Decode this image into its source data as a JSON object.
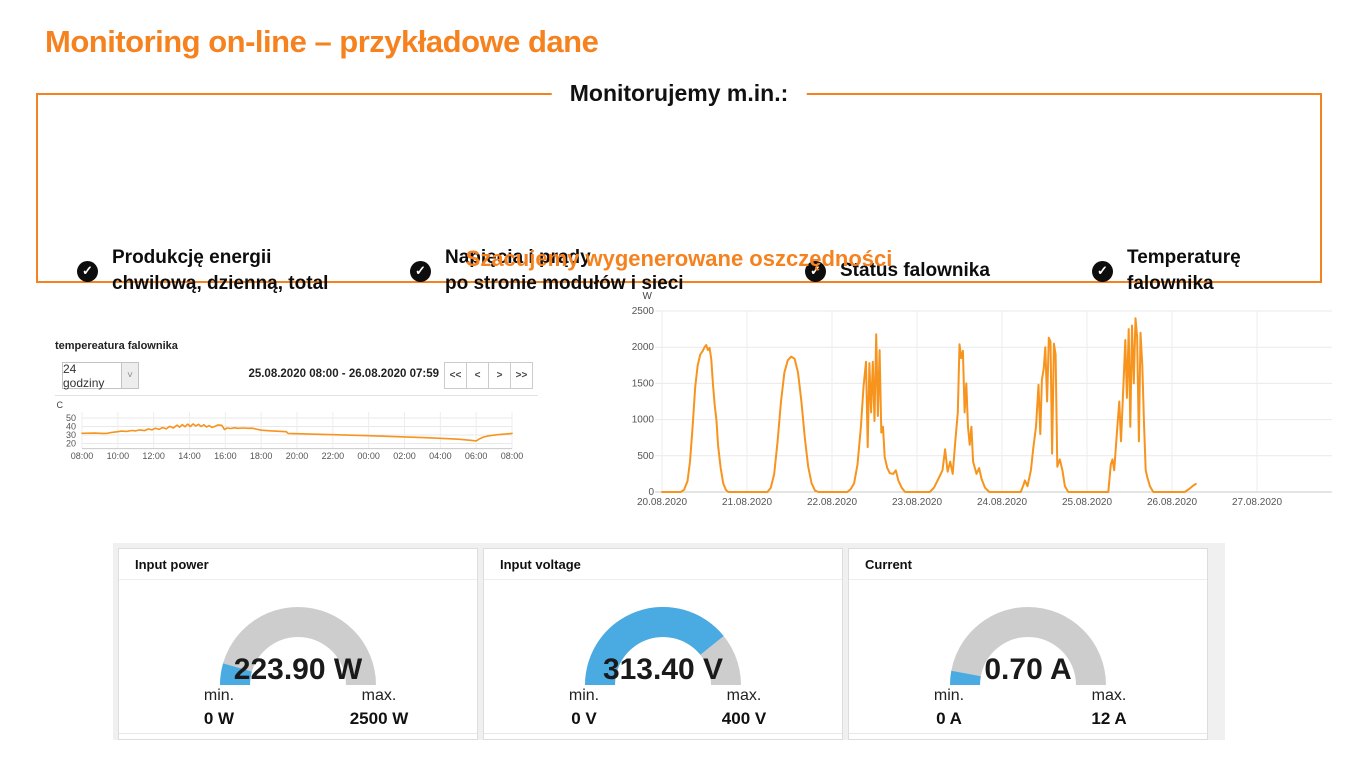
{
  "slide": {
    "title": "Monitoring on-line – przykładowe dane",
    "features_heading": "Monitorujemy m.in.:",
    "features": [
      {
        "lines": [
          "Produkcję energii",
          "chwilową, dzienną, total"
        ]
      },
      {
        "lines": [
          "Napięcia i prądy",
          "po stronie modułów i sieci"
        ]
      },
      {
        "lines": [
          "Status falownika"
        ]
      },
      {
        "lines": [
          "Temperaturę",
          "falownika"
        ]
      }
    ],
    "subtitle": "Szacujemy wygenerowane oszczędności",
    "accent_color": "#f5821f"
  },
  "temp_panel": {
    "title": "tempereatura falownika",
    "range_value": "24 godziny",
    "date_range": "25.08.2020 08:00 - 26.08.2020 07:59",
    "nav": [
      "<<",
      "<",
      ">",
      ">>"
    ]
  },
  "chart_data": [
    {
      "id": "temperature",
      "type": "line",
      "title": "tempereatura falownika",
      "ylabel": "C",
      "ylim": [
        14,
        57
      ],
      "yticks": [
        20,
        30,
        40,
        50
      ],
      "xlim": [
        0,
        24
      ],
      "xtick_values": [
        0,
        2,
        4,
        6,
        8,
        10,
        12,
        14,
        16,
        18,
        20,
        22,
        24
      ],
      "xtick_labels": [
        "08:00",
        "10:00",
        "12:00",
        "14:00",
        "16:00",
        "18:00",
        "20:00",
        "22:00",
        "00:00",
        "02:00",
        "04:00",
        "06:00",
        "08:00"
      ],
      "grid": true,
      "line_color": "#f7941e",
      "points": [
        [
          0,
          32
        ],
        [
          0.7,
          32.2
        ],
        [
          1.2,
          31.9
        ],
        [
          1.4,
          32.0
        ],
        [
          1.6,
          32.8
        ],
        [
          2.0,
          33.8
        ],
        [
          2.2,
          34.6
        ],
        [
          2.5,
          34.2
        ],
        [
          2.8,
          35.3
        ],
        [
          3.0,
          34.8
        ],
        [
          3.2,
          36.0
        ],
        [
          3.5,
          35.2
        ],
        [
          3.7,
          37.2
        ],
        [
          3.9,
          36.0
        ],
        [
          4.1,
          38.0
        ],
        [
          4.3,
          36.6
        ],
        [
          4.5,
          38.8
        ],
        [
          4.7,
          37.2
        ],
        [
          4.9,
          40.2
        ],
        [
          5.1,
          38.2
        ],
        [
          5.3,
          41.6
        ],
        [
          5.45,
          39.2
        ],
        [
          5.6,
          42.2
        ],
        [
          5.75,
          39.6
        ],
        [
          5.9,
          42.8
        ],
        [
          6.05,
          40.0
        ],
        [
          6.2,
          43.0
        ],
        [
          6.35,
          40.6
        ],
        [
          6.5,
          42.6
        ],
        [
          6.65,
          40.0
        ],
        [
          6.8,
          42.0
        ],
        [
          6.95,
          39.4
        ],
        [
          7.1,
          41.0
        ],
        [
          7.25,
          38.8
        ],
        [
          7.4,
          40.0
        ],
        [
          7.6,
          41.8
        ],
        [
          7.8,
          41.4
        ],
        [
          7.95,
          36.4
        ],
        [
          8.1,
          38.2
        ],
        [
          8.3,
          37.6
        ],
        [
          8.5,
          38.4
        ],
        [
          8.7,
          37.8
        ],
        [
          9.0,
          38.2
        ],
        [
          9.3,
          37.9
        ],
        [
          9.5,
          38.0
        ],
        [
          9.7,
          37.0
        ],
        [
          10.0,
          35.6
        ],
        [
          10.5,
          34.9
        ],
        [
          11.0,
          34.3
        ],
        [
          11.4,
          33.9
        ],
        [
          11.5,
          31.9
        ],
        [
          12.0,
          31.5
        ],
        [
          13.0,
          30.9
        ],
        [
          14.0,
          30.3
        ],
        [
          15.0,
          29.7
        ],
        [
          16.0,
          29.1
        ],
        [
          17.0,
          28.4
        ],
        [
          18.0,
          27.7
        ],
        [
          19.0,
          26.9
        ],
        [
          20.0,
          26.1
        ],
        [
          21.0,
          25.1
        ],
        [
          21.7,
          23.8
        ],
        [
          22.0,
          23.1
        ],
        [
          22.15,
          25.0
        ],
        [
          22.4,
          27.5
        ],
        [
          22.7,
          29.0
        ],
        [
          23.2,
          30.3
        ],
        [
          23.6,
          31.0
        ],
        [
          24.0,
          31.8
        ]
      ]
    },
    {
      "id": "power",
      "type": "line",
      "title": "",
      "ylabel": "W",
      "ylim": [
        0,
        2500
      ],
      "yticks": [
        0,
        500,
        1000,
        1500,
        2000,
        2500
      ],
      "xlim": [
        -0.08,
        7.88
      ],
      "xtick_values": [
        0,
        1,
        2,
        3,
        4,
        5,
        6,
        7
      ],
      "xtick_labels": [
        "20.08.2020",
        "21.08.2020",
        "22.08.2020",
        "23.08.2020",
        "24.08.2020",
        "25.08.2020",
        "26.08.2020",
        "27.08.2020"
      ],
      "grid": true,
      "line_color": "#f7941e",
      "points": [
        [
          0,
          0
        ],
        [
          0.22,
          0
        ],
        [
          0.26,
          30
        ],
        [
          0.3,
          150
        ],
        [
          0.33,
          420
        ],
        [
          0.36,
          900
        ],
        [
          0.39,
          1450
        ],
        [
          0.42,
          1750
        ],
        [
          0.45,
          1900
        ],
        [
          0.48,
          1950
        ],
        [
          0.5,
          2000
        ],
        [
          0.52,
          2030
        ],
        [
          0.54,
          1960
        ],
        [
          0.56,
          1990
        ],
        [
          0.58,
          1830
        ],
        [
          0.6,
          1480
        ],
        [
          0.62,
          1200
        ],
        [
          0.64,
          1000
        ],
        [
          0.66,
          640
        ],
        [
          0.69,
          330
        ],
        [
          0.72,
          120
        ],
        [
          0.75,
          30
        ],
        [
          0.78,
          0
        ],
        [
          1.24,
          0
        ],
        [
          1.28,
          60
        ],
        [
          1.32,
          250
        ],
        [
          1.36,
          700
        ],
        [
          1.4,
          1250
        ],
        [
          1.44,
          1650
        ],
        [
          1.48,
          1820
        ],
        [
          1.52,
          1870
        ],
        [
          1.56,
          1840
        ],
        [
          1.6,
          1650
        ],
        [
          1.64,
          1250
        ],
        [
          1.68,
          750
        ],
        [
          1.72,
          350
        ],
        [
          1.76,
          120
        ],
        [
          1.8,
          20
        ],
        [
          1.84,
          0
        ],
        [
          2.18,
          0
        ],
        [
          2.22,
          40
        ],
        [
          2.26,
          120
        ],
        [
          2.3,
          380
        ],
        [
          2.34,
          900
        ],
        [
          2.37,
          1450
        ],
        [
          2.4,
          1800
        ],
        [
          2.42,
          620
        ],
        [
          2.44,
          1780
        ],
        [
          2.46,
          1100
        ],
        [
          2.48,
          1800
        ],
        [
          2.5,
          980
        ],
        [
          2.52,
          2180
        ],
        [
          2.54,
          1050
        ],
        [
          2.56,
          1960
        ],
        [
          2.58,
          820
        ],
        [
          2.6,
          900
        ],
        [
          2.62,
          480
        ],
        [
          2.65,
          330
        ],
        [
          2.68,
          260
        ],
        [
          2.72,
          250
        ],
        [
          2.75,
          300
        ],
        [
          2.78,
          160
        ],
        [
          2.82,
          60
        ],
        [
          2.86,
          0
        ],
        [
          3.15,
          0
        ],
        [
          3.2,
          60
        ],
        [
          3.25,
          180
        ],
        [
          3.3,
          300
        ],
        [
          3.33,
          590
        ],
        [
          3.36,
          280
        ],
        [
          3.39,
          420
        ],
        [
          3.42,
          250
        ],
        [
          3.45,
          700
        ],
        [
          3.48,
          1100
        ],
        [
          3.5,
          2040
        ],
        [
          3.52,
          1850
        ],
        [
          3.54,
          1950
        ],
        [
          3.56,
          1100
        ],
        [
          3.58,
          1500
        ],
        [
          3.6,
          900
        ],
        [
          3.62,
          650
        ],
        [
          3.64,
          900
        ],
        [
          3.66,
          420
        ],
        [
          3.7,
          250
        ],
        [
          3.73,
          330
        ],
        [
          3.76,
          180
        ],
        [
          3.8,
          60
        ],
        [
          3.85,
          0
        ],
        [
          4.22,
          0
        ],
        [
          4.25,
          90
        ],
        [
          4.27,
          160
        ],
        [
          4.3,
          80
        ],
        [
          4.34,
          300
        ],
        [
          4.37,
          620
        ],
        [
          4.4,
          900
        ],
        [
          4.43,
          1480
        ],
        [
          4.45,
          800
        ],
        [
          4.47,
          1550
        ],
        [
          4.49,
          1700
        ],
        [
          4.51,
          2000
        ],
        [
          4.53,
          1250
        ],
        [
          4.55,
          2130
        ],
        [
          4.57,
          2080
        ],
        [
          4.59,
          530
        ],
        [
          4.61,
          2050
        ],
        [
          4.63,
          1900
        ],
        [
          4.65,
          350
        ],
        [
          4.68,
          450
        ],
        [
          4.71,
          300
        ],
        [
          4.74,
          80
        ],
        [
          4.78,
          0
        ],
        [
          5.25,
          0
        ],
        [
          5.28,
          380
        ],
        [
          5.3,
          450
        ],
        [
          5.32,
          300
        ],
        [
          5.36,
          950
        ],
        [
          5.38,
          1250
        ],
        [
          5.4,
          700
        ],
        [
          5.43,
          1500
        ],
        [
          5.45,
          2100
        ],
        [
          5.47,
          1300
        ],
        [
          5.49,
          2250
        ],
        [
          5.51,
          900
        ],
        [
          5.53,
          2300
        ],
        [
          5.55,
          1500
        ],
        [
          5.57,
          2400
        ],
        [
          5.59,
          2150
        ],
        [
          5.61,
          700
        ],
        [
          5.63,
          2200
        ],
        [
          5.65,
          1750
        ],
        [
          5.67,
          950
        ],
        [
          5.69,
          300
        ],
        [
          5.71,
          200
        ],
        [
          5.74,
          80
        ],
        [
          5.78,
          0
        ],
        [
          6.15,
          0
        ],
        [
          6.2,
          40
        ],
        [
          6.25,
          90
        ],
        [
          6.28,
          110
        ]
      ]
    },
    {
      "id": "gauges",
      "type": "gauge",
      "items": [
        {
          "title": "Input power",
          "value_label": "223.90 W",
          "value": 223.9,
          "min": 0,
          "max": 2500,
          "min_caption": "min.",
          "max_caption": "max.",
          "min_label": "0 W",
          "max_label": "2500 W",
          "fill_color": "#4aabe2",
          "track_color": "#cdcdcd"
        },
        {
          "title": "Input voltage",
          "value_label": "313.40 V",
          "value": 313.4,
          "min": 0,
          "max": 400,
          "min_caption": "min.",
          "max_caption": "max.",
          "min_label": "0 V",
          "max_label": "400 V",
          "fill_color": "#4aabe2",
          "track_color": "#cdcdcd"
        },
        {
          "title": "Current",
          "value_label": "0.70 A",
          "value": 0.7,
          "min": 0,
          "max": 12,
          "min_caption": "min.",
          "max_caption": "max.",
          "min_label": "0 A",
          "max_label": "12 A",
          "fill_color": "#4aabe2",
          "track_color": "#cdcdcd"
        }
      ]
    }
  ]
}
